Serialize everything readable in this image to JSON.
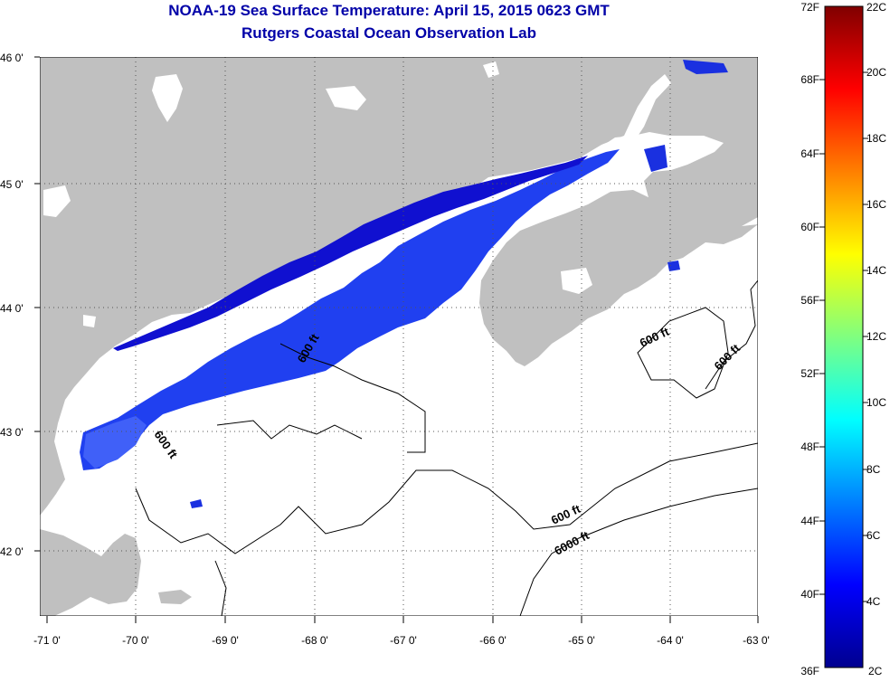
{
  "header": {
    "title": "NOAA-19 Sea Surface Temperature:  April 15, 2015 0623 GMT",
    "subtitle": "Rutgers Coastal Ocean Observation Lab"
  },
  "map": {
    "lat_labels": [
      "46 0'",
      "45 0'",
      "44 0'",
      "43 0'",
      "42 0'"
    ],
    "lon_labels": [
      "-71 0'",
      "-70 0'",
      "-69 0'",
      "-68 0'",
      "-67 0'",
      "-66 0'",
      "-65 0'",
      "-64 0'",
      "-63 0'"
    ],
    "contour_labels": [
      "600 ft",
      "600 ft",
      "600 ft",
      "600 ft",
      "600 ft",
      "6000 ft"
    ],
    "colors": {
      "land": "#c0c0c0",
      "cloud": "#ffffff",
      "sst_dark": "#1010d8",
      "sst_mid": "#2a3cf0",
      "sst_light": "#3c5cf8"
    }
  },
  "colorbar": {
    "fahrenheit_labels": [
      "72F",
      "68F",
      "64F",
      "60F",
      "56F",
      "52F",
      "48F",
      "44F",
      "40F",
      "36F"
    ],
    "celsius_labels": [
      "22C",
      "20C",
      "18C",
      "16C",
      "14C",
      "12C",
      "10C",
      "8C",
      "6C",
      "4C",
      "2C"
    ],
    "range_f": [
      36,
      72
    ],
    "range_c": [
      2,
      22
    ],
    "colormap": "jet"
  }
}
